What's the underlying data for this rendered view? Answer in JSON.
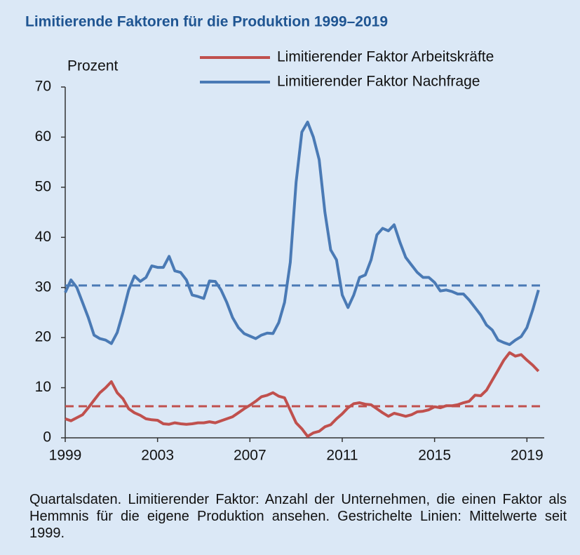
{
  "chart_data": {
    "type": "line",
    "title": "Limitierende Faktoren für die Produktion 1999–2019",
    "y_label": "Prozent",
    "note": "Quartalsdaten. Limitierender Faktor: Anzahl der Unternehmen, die einen Faktor als Hemmnis für die eigene Produktion ansehen. Gestrichelte Linien: Mittelwerte seit 1999.",
    "x": [
      1999,
      1999.25,
      1999.5,
      1999.75,
      2000,
      2000.25,
      2000.5,
      2000.75,
      2001,
      2001.25,
      2001.5,
      2001.75,
      2002,
      2002.25,
      2002.5,
      2002.75,
      2003,
      2003.25,
      2003.5,
      2003.75,
      2004,
      2004.25,
      2004.5,
      2004.75,
      2005,
      2005.25,
      2005.5,
      2005.75,
      2006,
      2006.25,
      2006.5,
      2006.75,
      2007,
      2007.25,
      2007.5,
      2007.75,
      2008,
      2008.25,
      2008.5,
      2008.75,
      2009,
      2009.25,
      2009.5,
      2009.75,
      2010,
      2010.25,
      2010.5,
      2010.75,
      2011,
      2011.25,
      2011.5,
      2011.75,
      2012,
      2012.25,
      2012.5,
      2012.75,
      2013,
      2013.25,
      2013.5,
      2013.75,
      2014,
      2014.25,
      2014.5,
      2014.75,
      2015,
      2015.25,
      2015.5,
      2015.75,
      2016,
      2016.25,
      2016.5,
      2016.75,
      2017,
      2017.25,
      2017.5,
      2017.75,
      2018,
      2018.25,
      2018.5,
      2018.75,
      2019,
      2019.25,
      2019.5
    ],
    "series": [
      {
        "name": "Limitierender Faktor Arbeitskräfte",
        "color": "#c0504d",
        "values": [
          3.8,
          3.4,
          4,
          4.6,
          6,
          7.5,
          9,
          10,
          11.2,
          9,
          7.8,
          5.8,
          5,
          4.5,
          3.8,
          3.6,
          3.5,
          2.8,
          2.7,
          3,
          2.8,
          2.7,
          2.8,
          3,
          3,
          3.2,
          3,
          3.4,
          3.8,
          4.2,
          5,
          5.8,
          6.5,
          7.3,
          8.2,
          8.5,
          9,
          8.3,
          8,
          5.5,
          3,
          1.8,
          0.3,
          1,
          1.3,
          2.2,
          2.6,
          3.8,
          4.8,
          6,
          6.8,
          7,
          6.7,
          6.6,
          5.8,
          5,
          4.3,
          4.9,
          4.6,
          4.3,
          4.6,
          5.2,
          5.3,
          5.6,
          6.2,
          6,
          6.4,
          6.4,
          6.6,
          7,
          7.3,
          8.5,
          8.4,
          9.5,
          11.5,
          13.5,
          15.5,
          17,
          16.3,
          16.6,
          15.5,
          14.5,
          13.3
        ]
      },
      {
        "name": "Limitierender Faktor Nachfrage",
        "color": "#4a7ab5",
        "values": [
          29,
          31.5,
          30,
          27,
          24,
          20.5,
          19.8,
          19.5,
          18.8,
          21,
          25,
          29.5,
          32.3,
          31.2,
          32,
          34.3,
          34,
          34,
          36.2,
          33.3,
          33,
          31.5,
          28.5,
          28.2,
          27.8,
          31.3,
          31.2,
          29.5,
          27,
          24,
          22,
          20.8,
          20.3,
          19.8,
          20.5,
          20.9,
          20.8,
          23,
          27,
          35,
          51,
          61,
          63,
          60,
          55.5,
          45,
          37.5,
          35.5,
          28.5,
          26,
          28.5,
          32,
          32.5,
          35.5,
          40.5,
          41.8,
          41.3,
          42.5,
          39,
          36,
          34.5,
          33,
          32,
          32,
          31,
          29.3,
          29.5,
          29.2,
          28.7,
          28.7,
          27.5,
          26,
          24.5,
          22.5,
          21.5,
          19.5,
          19,
          18.6,
          19.5,
          20.2,
          22,
          25.5,
          29.5
        ]
      }
    ],
    "reference_lines": [
      {
        "value": 6.3,
        "color": "#c0504d",
        "dashed": true
      },
      {
        "value": 30.4,
        "color": "#4a7ab5",
        "dashed": true
      }
    ],
    "xlim": [
      1999,
      2019.75
    ],
    "xticks": [
      1999,
      2003,
      2007,
      2011,
      2015,
      2019
    ],
    "ylim": [
      0,
      70
    ],
    "yticks": [
      0,
      10,
      20,
      30,
      40,
      50,
      60,
      70
    ],
    "grid": false
  }
}
